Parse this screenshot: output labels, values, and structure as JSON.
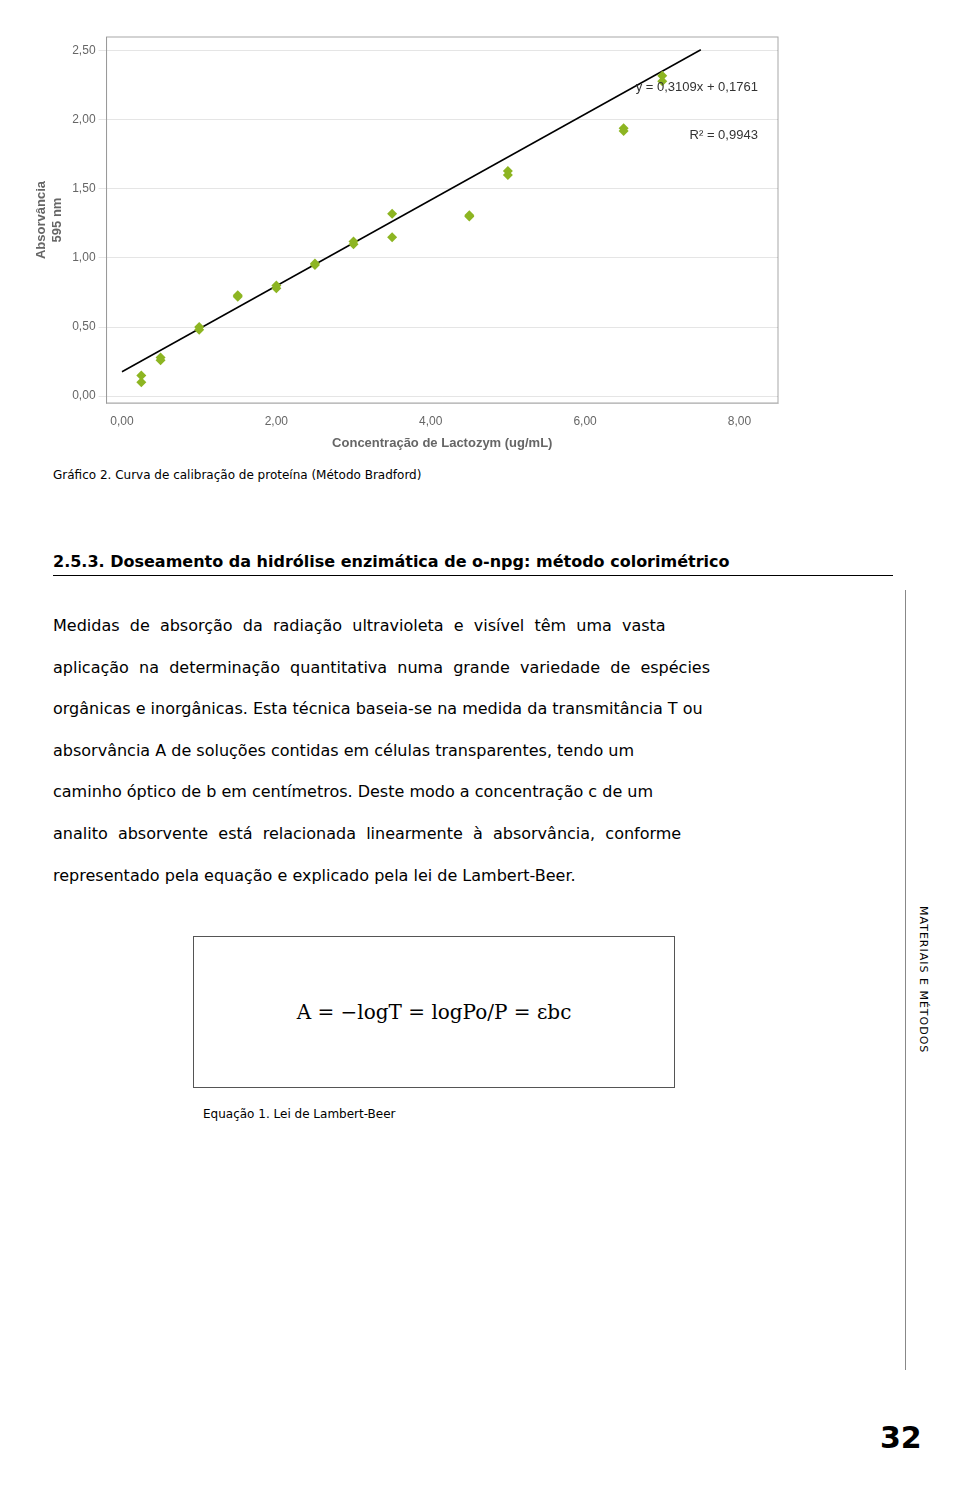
{
  "chart_data": {
    "type": "scatter",
    "xlabel": "Concentração de Lactozym (ug/mL)",
    "ylabel": [
      "Absorvância",
      "595 nm"
    ],
    "caption": "Gráfico 2. Curva de calibração de proteína (Método Bradford)",
    "annotations": [
      "y = 0,3109x + 0,1761",
      "R² = 0,9943"
    ],
    "series": [
      {
        "type": "scatter",
        "marker": "diamond",
        "color": "#8DB522",
        "x": [
          0.25,
          0.5,
          1.0,
          1.5,
          2.0,
          2.5,
          3.0,
          3.5,
          4.5,
          5.0,
          6.5,
          7.0
        ],
        "values": [
          0.1,
          0.26,
          0.5,
          0.73,
          0.78,
          0.96,
          1.12,
          1.15,
          1.31,
          1.6,
          1.92,
          2.28
        ]
      },
      {
        "type": "scatter",
        "marker": "diamond",
        "color": "#8DB522",
        "x": [
          0.25,
          0.5,
          1.0,
          1.5,
          2.0,
          2.5,
          3.0,
          3.5,
          4.5,
          5.0,
          6.5,
          7.0
        ],
        "values": [
          0.15,
          0.28,
          0.48,
          0.72,
          0.8,
          0.95,
          1.1,
          1.32,
          1.3,
          1.63,
          1.94,
          2.32
        ]
      },
      {
        "type": "line",
        "line_style": "solid",
        "color": "#000000",
        "x": [
          0.0,
          7.5
        ],
        "values": [
          0.1761,
          2.50785
        ]
      }
    ],
    "xlim": [
      -0.2,
      8.5
    ],
    "ylim": [
      -0.05,
      2.6
    ],
    "xticks": [
      {
        "value": 0,
        "label": "0,00"
      },
      {
        "value": 2,
        "label": "2,00"
      },
      {
        "value": 4,
        "label": "4,00"
      },
      {
        "value": 6,
        "label": "6,00"
      },
      {
        "value": 8,
        "label": "8,00"
      }
    ],
    "yticks": [
      {
        "value": 0,
        "label": "0,00"
      },
      {
        "value": 0.5,
        "label": "0,50"
      },
      {
        "value": 1,
        "label": "1,00"
      },
      {
        "value": 1.5,
        "label": "1,50"
      },
      {
        "value": 2,
        "label": "2,00"
      },
      {
        "value": 2.5,
        "label": "2,50"
      }
    ],
    "grid": "y"
  },
  "page": {
    "heading": "2.5.3. Doseamento da hidrólise enzimática de o-npg: método colorimétrico",
    "body": [
      "Medidas  de  absorção  da  radiação  ultravioleta  e  visível  têm  uma  vasta",
      "aplicação  na  determinação  quantitativa  numa  grande  variedade  de  espécies",
      "orgânicas e inorgânicas. Esta técnica baseia-se na medida da transmitância T ou",
      "absorvância A de soluções contidas em células transparentes, tendo um",
      "caminho óptico de b em centímetros. Deste modo a concentração c de um",
      "analito  absorvente  está  relacionada  linearmente  à  absorvância,  conforme",
      "representado pela equação e explicado pela lei de Lambert-Beer."
    ],
    "equation": "A = −logT = logPo/P = εbc",
    "equation_label": "Equação 1. Lei de Lambert-Beer",
    "sidebar": "MATERIAIS E MÉTODOS",
    "page_number": "32"
  }
}
